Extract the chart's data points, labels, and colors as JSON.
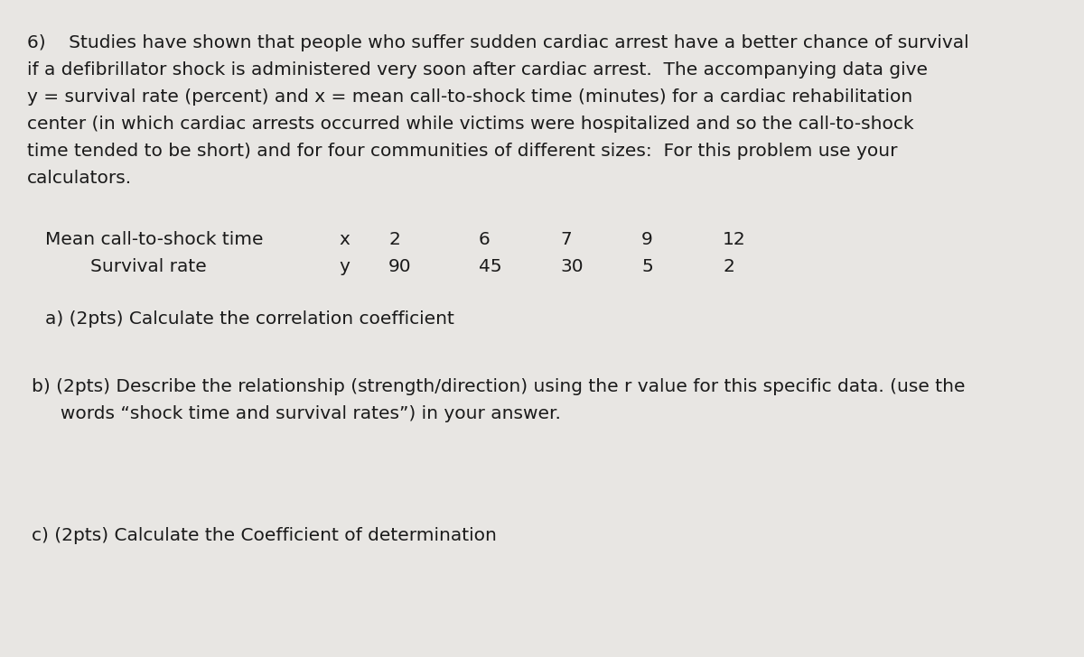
{
  "bg_color": "#e8e6e3",
  "text_color": "#1a1a1a",
  "row1_label": "Mean call-to-shock time",
  "row1_var": "x",
  "row1_values": [
    "2",
    "6",
    "7",
    "9",
    "12"
  ],
  "row2_label": "Survival rate",
  "row2_var": "y",
  "row2_values": [
    "90",
    "45",
    "30",
    "5",
    "2"
  ],
  "question_a": "a) (2pts) Calculate the correlation coefficient",
  "question_b_line1": "b) (2pts) Describe the relationship (strength/direction) using the r value for this specific data. (use the",
  "question_b_line2": "     words “shock time and survival rates”) in your answer.",
  "question_c": "c) (2pts) Calculate the Coefficient of determination",
  "font_size_main": 14.5,
  "line1": "6)    Studies have shown that people who suffer sudden cardiac arrest have a better chance of survival",
  "line2": "if a defibrillator shock is administered very soon after cardiac arrest.  The accompanying data give",
  "line3": "y = survival rate (percent) and x = mean call-to-shock time (minutes) for a cardiac rehabilitation",
  "line4": "center (in which cardiac arrests occurred while victims were hospitalized and so the call-to-shock",
  "line5": "time tended to be short) and for four communities of different sizes:  For this problem use your",
  "line6": "calculators."
}
